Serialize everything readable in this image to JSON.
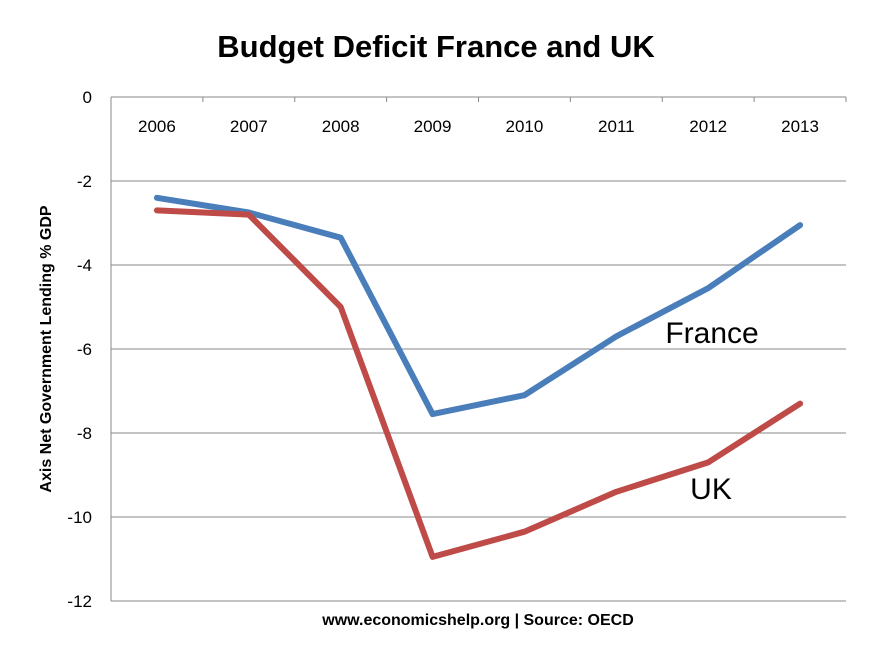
{
  "chart_data": {
    "type": "line",
    "title": "Budget Deficit France and UK",
    "xlabel": "",
    "ylabel": "Axis Net Government Lending % GDP",
    "source": "www.economicshelp.org | Source: OECD",
    "categories": [
      "2006",
      "2007",
      "2008",
      "2009",
      "2010",
      "2011",
      "2012",
      "2013"
    ],
    "ylim": [
      -12,
      0
    ],
    "yticks": [
      0,
      -2,
      -4,
      -6,
      -8,
      -10,
      -12
    ],
    "x_axis_position": "top",
    "grid": true,
    "legend": "none",
    "series": [
      {
        "name": "France",
        "color": "#4a7ebb",
        "values": [
          -2.4,
          -2.75,
          -3.35,
          -7.55,
          -7.1,
          -5.7,
          -4.55,
          -3.05
        ]
      },
      {
        "name": "UK",
        "color": "#be4b48",
        "values": [
          -2.7,
          -2.8,
          -5.0,
          -10.95,
          -10.35,
          -9.4,
          -8.7,
          -7.3
        ]
      }
    ]
  }
}
